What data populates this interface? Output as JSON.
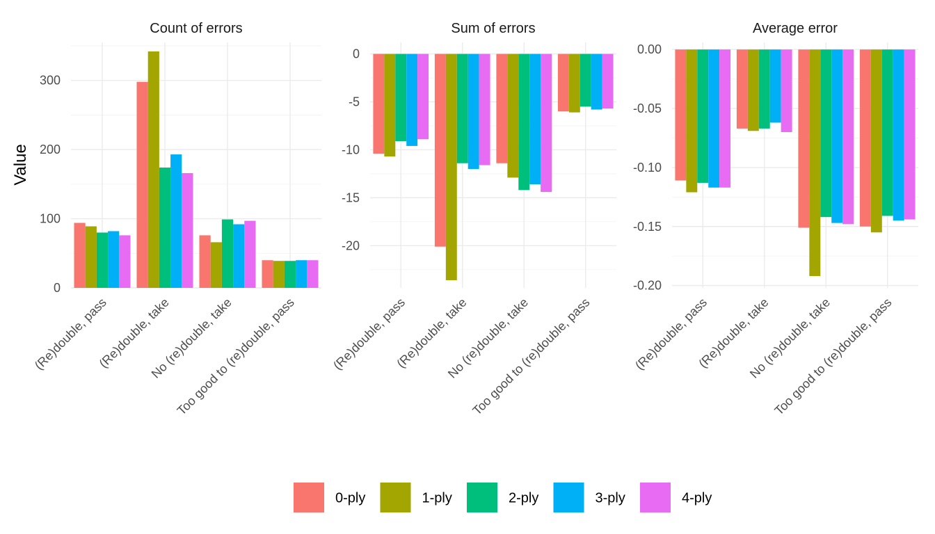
{
  "chart_data": {
    "type": "bar",
    "ylabel": "Value",
    "legend_position": "bottom",
    "categories": [
      "(Re)double, pass",
      "(Re)double, take",
      "No (re)double, take",
      "Too good to (re)double, pass"
    ],
    "legend": [
      {
        "name": "0-ply",
        "color": "#F8766D"
      },
      {
        "name": "1-ply",
        "color": "#A3A500"
      },
      {
        "name": "2-ply",
        "color": "#00BF7D"
      },
      {
        "name": "3-ply",
        "color": "#00B0F6"
      },
      {
        "name": "4-ply",
        "color": "#E76BF3"
      }
    ],
    "panels": [
      {
        "title": "Count of errors",
        "ylim": [
          0,
          355
        ],
        "ticks": [
          0,
          100,
          200,
          300
        ],
        "tick_labels": [
          "0",
          "100",
          "200",
          "300"
        ],
        "series": [
          {
            "name": "0-ply",
            "values": [
              94,
              298,
              76,
              40
            ]
          },
          {
            "name": "1-ply",
            "values": [
              89,
              342,
              66,
              39
            ]
          },
          {
            "name": "2-ply",
            "values": [
              80,
              174,
              99,
              39
            ]
          },
          {
            "name": "3-ply",
            "values": [
              82,
              193,
              92,
              40
            ]
          },
          {
            "name": "4-ply",
            "values": [
              76,
              166,
              97,
              40
            ]
          }
        ]
      },
      {
        "title": "Sum of errors",
        "ylim": [
          -24.4,
          1.2
        ],
        "ticks": [
          0,
          -5,
          -10,
          -15,
          -20
        ],
        "tick_labels": [
          "0",
          "-5",
          "-10",
          "-15",
          "-20"
        ],
        "series": [
          {
            "name": "0-ply",
            "values": [
              -10.4,
              -20.1,
              -11.4,
              -6.0
            ]
          },
          {
            "name": "1-ply",
            "values": [
              -10.7,
              -23.6,
              -12.9,
              -6.1
            ]
          },
          {
            "name": "2-ply",
            "values": [
              -9.1,
              -11.4,
              -14.2,
              -5.5
            ]
          },
          {
            "name": "3-ply",
            "values": [
              -9.6,
              -12.0,
              -13.6,
              -5.8
            ]
          },
          {
            "name": "4-ply",
            "values": [
              -8.9,
              -11.6,
              -14.4,
              -5.7
            ]
          }
        ]
      },
      {
        "title": "Average error",
        "ylim": [
          -0.202,
          0.006
        ],
        "ticks": [
          0,
          -0.05,
          -0.1,
          -0.15,
          -0.2
        ],
        "tick_labels": [
          "0.00",
          "-0.05",
          "-0.10",
          "-0.15",
          "-0.20"
        ],
        "series": [
          {
            "name": "0-ply",
            "values": [
              -0.111,
              -0.067,
              -0.151,
              -0.15
            ]
          },
          {
            "name": "1-ply",
            "values": [
              -0.121,
              -0.069,
              -0.192,
              -0.155
            ]
          },
          {
            "name": "2-ply",
            "values": [
              -0.113,
              -0.067,
              -0.142,
              -0.141
            ]
          },
          {
            "name": "3-ply",
            "values": [
              -0.117,
              -0.062,
              -0.147,
              -0.145
            ]
          },
          {
            "name": "4-ply",
            "values": [
              -0.117,
              -0.07,
              -0.148,
              -0.144
            ]
          }
        ]
      }
    ]
  }
}
